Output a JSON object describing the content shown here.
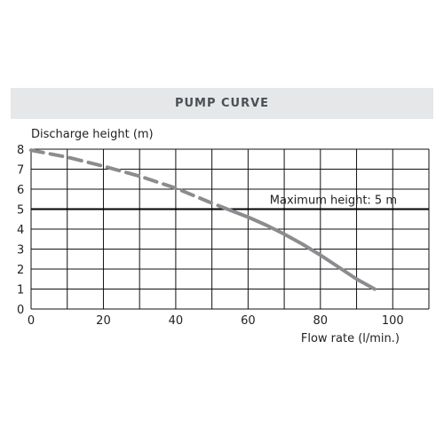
{
  "header": {
    "title": "PUMP CURVE"
  },
  "colors": {
    "band": "#e6e7e8",
    "curve": "#8a8c8f",
    "grid": "#111111",
    "text": "#222222"
  },
  "chart_data": {
    "type": "line",
    "title": "PUMP CURVE",
    "xlabel": "Flow rate (l/min.)",
    "ylabel": "Discharge height (m)",
    "xlim": [
      0,
      110
    ],
    "ylim": [
      0,
      8
    ],
    "x_ticks": [
      0,
      20,
      40,
      60,
      80,
      100
    ],
    "y_ticks": [
      0,
      1,
      2,
      3,
      4,
      5,
      6,
      7,
      8
    ],
    "grid": true,
    "series": [
      {
        "style": "dashed",
        "x": [
          0,
          10,
          20,
          30,
          40,
          50,
          55
        ],
        "y": [
          7.95,
          7.6,
          7.15,
          6.65,
          6.05,
          5.3,
          4.95
        ]
      },
      {
        "style": "solid",
        "x": [
          55,
          60,
          65,
          70,
          75,
          80,
          85,
          90,
          95
        ],
        "y": [
          4.95,
          4.6,
          4.2,
          3.75,
          3.25,
          2.7,
          2.1,
          1.5,
          1.0
        ]
      }
    ],
    "reference_line": {
      "y": 5,
      "label": "Maximum height: 5 m"
    }
  }
}
